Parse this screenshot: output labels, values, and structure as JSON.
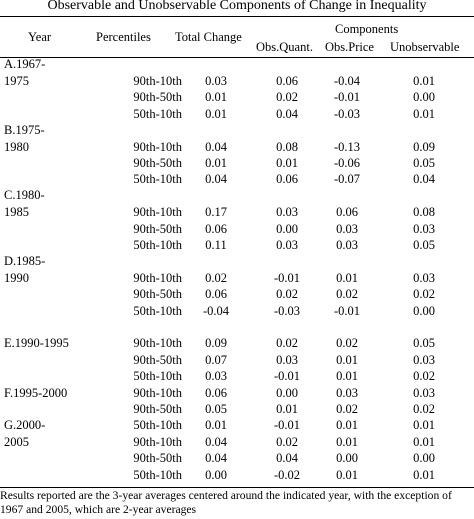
{
  "title": "Observable and Unobservable Components of Change in Inequality",
  "headers": {
    "year": "Year",
    "percentiles": "Percentiles",
    "total_change": "Total Change",
    "components": "Components",
    "obs_quant": "Obs.Quant.",
    "obs_price": "Obs.Price",
    "unobservable": "Unobservable"
  },
  "groups": [
    {
      "label_line1": "A.1967-",
      "label_line2": "1975",
      "rows": [
        {
          "pct": "90th-10th",
          "total": "0.03",
          "quant": "0.06",
          "price": "-0.04",
          "unobs": "0.01"
        },
        {
          "pct": "90th-50th",
          "total": "0.01",
          "quant": "0.02",
          "price": "-0.01",
          "unobs": "0.00"
        },
        {
          "pct": "50th-10th",
          "total": "0.01",
          "quant": "0.04",
          "price": "-0.03",
          "unobs": "0.01"
        }
      ]
    },
    {
      "label_line1": "B.1975-",
      "label_line2": "1980",
      "rows": [
        {
          "pct": "90th-10th",
          "total": "0.04",
          "quant": "0.08",
          "price": "-0.13",
          "unobs": "0.09"
        },
        {
          "pct": "90th-50th",
          "total": "0.01",
          "quant": "0.01",
          "price": "-0.06",
          "unobs": "0.05"
        },
        {
          "pct": "50th-10th",
          "total": "0.04",
          "quant": "0.06",
          "price": "-0.07",
          "unobs": "0.04"
        }
      ]
    },
    {
      "label_line1": "C.1980-",
      "label_line2": "1985",
      "rows": [
        {
          "pct": "90th-10th",
          "total": "0.17",
          "quant": "0.03",
          "price": "0.06",
          "unobs": "0.08"
        },
        {
          "pct": "90th-50th",
          "total": "0.06",
          "quant": "0.00",
          "price": "0.03",
          "unobs": "0.03"
        },
        {
          "pct": "50th-10th",
          "total": "0.11",
          "quant": "0.03",
          "price": "0.03",
          "unobs": "0.05"
        }
      ]
    },
    {
      "label_line1": "D.1985-",
      "label_line2": "1990",
      "rows": [
        {
          "pct": "90th-10th",
          "total": "0.02",
          "quant": "-0.01",
          "price": "0.01",
          "unobs": "0.03"
        },
        {
          "pct": "90th-50th",
          "total": "0.06",
          "quant": "0.02",
          "price": "0.02",
          "unobs": "0.02"
        },
        {
          "pct": "50th-10th",
          "total": "-0.04",
          "quant": "-0.03",
          "price": "-0.01",
          "unobs": "0.00"
        }
      ]
    },
    {
      "label_line1": "E.1990-1995",
      "label_line2": "",
      "rows": [
        {
          "pct": "90th-10th",
          "total": "0.09",
          "quant": "0.02",
          "price": "0.02",
          "unobs": "0.05"
        },
        {
          "pct": "90th-50th",
          "total": "0.07",
          "quant": "0.03",
          "price": "0.01",
          "unobs": "0.03"
        },
        {
          "pct": "50th-10th",
          "total": "0.03",
          "quant": "-0.01",
          "price": "0.01",
          "unobs": "0.02"
        }
      ]
    },
    {
      "label_line1": "F.1995-2000",
      "label_line2": "",
      "rows": [
        {
          "pct": "90th-10th",
          "total": "0.06",
          "quant": "0.00",
          "price": "0.03",
          "unobs": "0.03"
        },
        {
          "pct": "90th-50th",
          "total": "0.05",
          "quant": "0.01",
          "price": "0.02",
          "unobs": "0.02"
        },
        {
          "pct": "50th-10th",
          "total": "0.01",
          "quant": "-0.01",
          "price": "0.01",
          "unobs": "0.01"
        }
      ]
    },
    {
      "label_line1": "G.2000-",
      "label_line2": "2005",
      "rows": [
        {
          "pct": "90th-10th",
          "total": "0.04",
          "quant": "0.02",
          "price": "0.01",
          "unobs": "0.01"
        },
        {
          "pct": "90th-50th",
          "total": "0.04",
          "quant": "0.04",
          "price": "0.00",
          "unobs": "0.00"
        },
        {
          "pct": "50th-10th",
          "total": "0.00",
          "quant": "-0.02",
          "price": "0.01",
          "unobs": "0.01"
        }
      ]
    }
  ],
  "note": "Results reported are the 3-year averages centered around the indicated year, with the exception of 1967 and 2005, which are 2-year averages"
}
